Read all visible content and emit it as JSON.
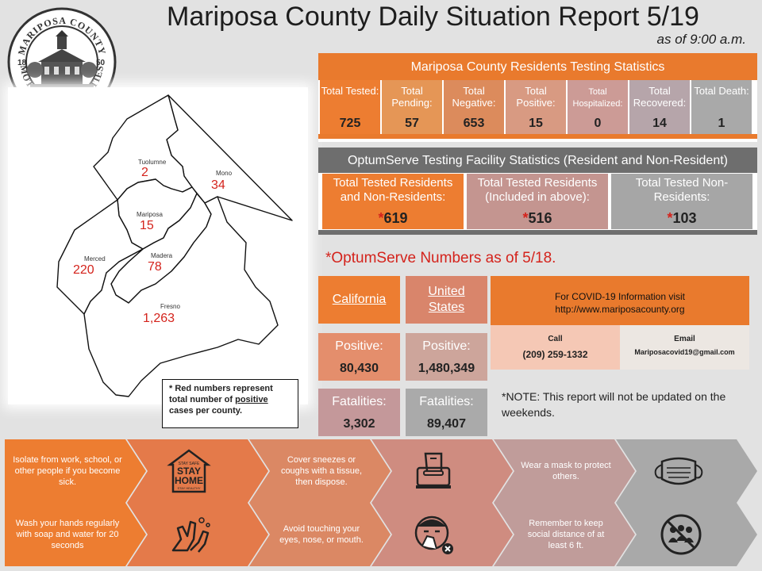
{
  "header": {
    "title": "Mariposa County Daily Situation Report 5/19",
    "subtitle": "as of 9:00 a.m."
  },
  "seal": {
    "top_text": "MARIPOSA COUNTY",
    "bottom_text": "MOTHER OF COUNTIES",
    "year_left": "18",
    "year_right": "50"
  },
  "map": {
    "counties": [
      {
        "name": "Tuolumne",
        "count": "2"
      },
      {
        "name": "Mono",
        "count": "34"
      },
      {
        "name": "Mariposa",
        "count": "15"
      },
      {
        "name": "Merced",
        "count": "220"
      },
      {
        "name": "Madera",
        "count": "78"
      },
      {
        "name": "Fresno",
        "count": "1,263"
      }
    ],
    "note_line1": "* Red numbers represent total number of ",
    "note_underlined": "positive",
    "note_line2": " cases per county."
  },
  "residents": {
    "title": "Mariposa County Residents Testing Statistics",
    "stats": [
      {
        "label": "Total Tested:",
        "value": "725",
        "color": "#ed7d31"
      },
      {
        "label": "Total Pending:",
        "value": "57",
        "color": "#e59656"
      },
      {
        "label": "Total Negative:",
        "value": "653",
        "color": "#dc8b5c"
      },
      {
        "label": "Total Positive:",
        "value": "15",
        "color": "#d89a82"
      },
      {
        "label": "Total Hospitalized:",
        "value": "0",
        "color": "#cc9b96"
      },
      {
        "label": "Total Recovered:",
        "value": "14",
        "color": "#b6a5aa"
      },
      {
        "label": "Total Death:",
        "value": "1",
        "color": "#a9a9a9"
      }
    ]
  },
  "optumserve": {
    "title": "OptumServe Testing Facility Statistics (Resident and Non-Resident)",
    "stats": [
      {
        "label": "Total Tested Residents and Non-Residents:",
        "star": "*",
        "value": "619",
        "color": "#ed7d31"
      },
      {
        "label": "Total Tested Residents (Included in above):",
        "star": "*",
        "value": "516",
        "color": "#c49590"
      },
      {
        "label": "Total Tested Non-Residents:",
        "star": "*",
        "value": "103",
        "color": "#a6a6a6"
      }
    ],
    "note": "*OptumServe Numbers as of 5/18."
  },
  "regions": {
    "california": {
      "name": "California",
      "positive_label": "Positive:",
      "positive": "80,430",
      "fatalities_label": "Fatalities:",
      "fatalities": "3,302"
    },
    "us": {
      "name": "United States",
      "positive_label": "Positive:",
      "positive": "1,480,349",
      "fatalities_label": "Fatalities:",
      "fatalities": "89,407"
    }
  },
  "info": {
    "line1": "For COVID-19 Information visit",
    "line2": "http://www.mariposacounty.org",
    "call_label": "Call",
    "phone": "(209) 259-1332",
    "email_label": "Email",
    "email": "Mariposacovid19@gmail.com"
  },
  "weekend_note": "*NOTE: This report will not be updated on the weekends.",
  "tips": {
    "row1": [
      {
        "text": "Isolate from work, school, or other people if you become sick."
      },
      {
        "icon": "stay-home-icon",
        "small_top": "STAY SAFE",
        "big1": "STAY",
        "big2": "HOME",
        "small_bottom": "STAY HEALTHY"
      },
      {
        "text": "Cover sneezes or coughs with a tissue, then dispose."
      },
      {
        "icon": "tissue-box-icon"
      },
      {
        "text": "Wear a mask to protect others."
      },
      {
        "icon": "face-mask-icon"
      }
    ],
    "row2": [
      {
        "text": "Wash your hands regularly with soap and water for 20 seconds"
      },
      {
        "icon": "hand-washing-icon"
      },
      {
        "text": "Avoid touching your eyes, nose, or mouth."
      },
      {
        "icon": "no-face-touch-icon"
      },
      {
        "text": "Remember to keep social distance of at least 6 ft."
      },
      {
        "icon": "no-crowds-icon"
      }
    ]
  },
  "colors": {
    "orange": "#ed7d31",
    "red_text": "#d4231c",
    "gray_header": "#6e6e6e"
  }
}
